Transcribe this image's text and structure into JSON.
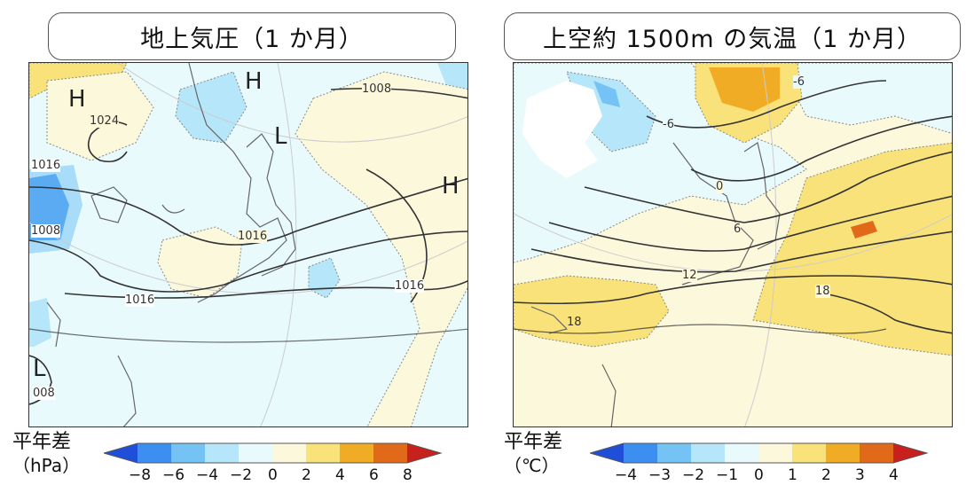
{
  "panels": [
    {
      "title": "地上気圧（1 か月）",
      "legend": {
        "label_line1": "平年差",
        "label_line2": "（hPa）",
        "ticks": [
          "−8",
          "−6",
          "−4",
          "−2",
          "0",
          "2",
          "4",
          "6",
          "8"
        ],
        "colors": [
          "#1f4fd8",
          "#3c8ef0",
          "#74c3f4",
          "#b6e6fa",
          "#e9fafd",
          "#fbf8dc",
          "#f9e27a",
          "#f0ac24",
          "#e06a1a",
          "#c8201c"
        ]
      },
      "isobar_labels": [
        "1024",
        "1016",
        "1008",
        "1016",
        "1016",
        "1016",
        "1008",
        "008"
      ],
      "pressure_systems": [
        "H",
        "H",
        "L",
        "H",
        "L"
      ]
    },
    {
      "title": "上空約 1500m の気温（1 か月）",
      "legend": {
        "label_line1": "平年差",
        "label_line2": "（℃）",
        "ticks": [
          "−4",
          "−3",
          "−2",
          "−1",
          "0",
          "1",
          "2",
          "3",
          "4"
        ],
        "colors": [
          "#1f4fd8",
          "#3c8ef0",
          "#74c3f4",
          "#b6e6fa",
          "#e9fafd",
          "#fbf8dc",
          "#f9e27a",
          "#f0ac24",
          "#e06a1a",
          "#c8201c"
        ]
      },
      "isotherm_labels": [
        "-6",
        "-6",
        "0",
        "6",
        "12",
        "18",
        "18"
      ]
    }
  ]
}
